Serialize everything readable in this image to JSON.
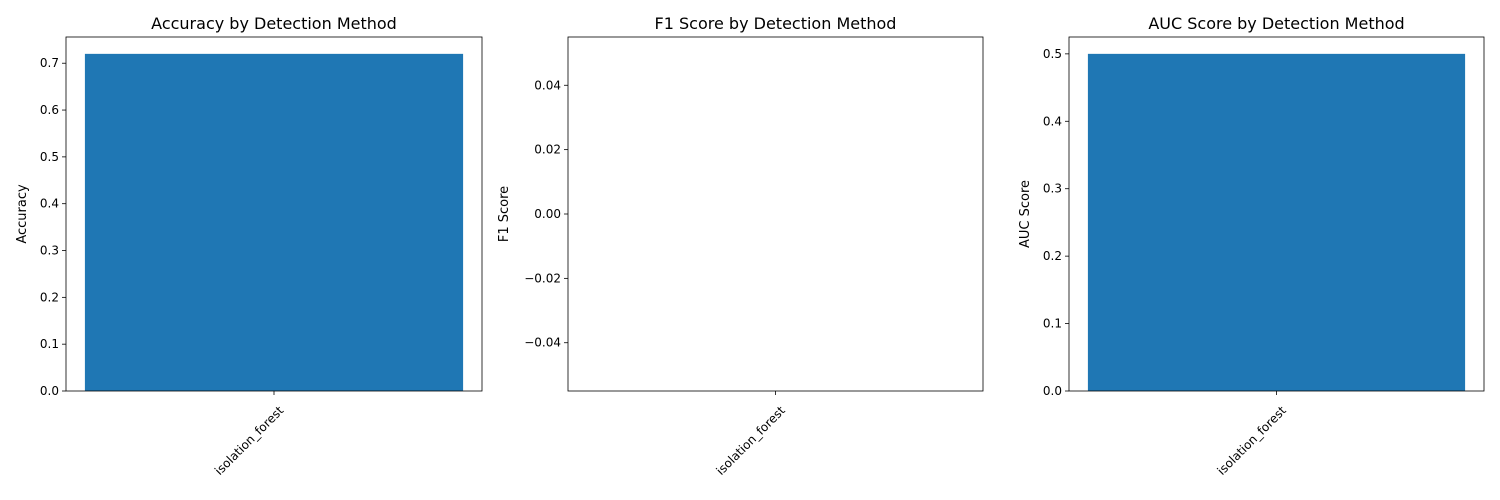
{
  "chart_data": [
    {
      "type": "bar",
      "title": "Accuracy by Detection Method",
      "xlabel": "",
      "ylabel": "Accuracy",
      "categories": [
        "isolation_forest"
      ],
      "values": [
        0.72
      ],
      "ylim": [
        0,
        0.756
      ],
      "yticks": [
        0.0,
        0.1,
        0.2,
        0.3,
        0.4,
        0.5,
        0.6,
        0.7
      ],
      "ytick_labels": [
        "0.0",
        "0.1",
        "0.2",
        "0.3",
        "0.4",
        "0.5",
        "0.6",
        "0.7"
      ],
      "grid": false,
      "bar_color": "#1f77b4"
    },
    {
      "type": "bar",
      "title": "F1 Score by Detection Method",
      "xlabel": "",
      "ylabel": "F1 Score",
      "categories": [
        "isolation_forest"
      ],
      "values": [
        0.0
      ],
      "ylim": [
        -0.055,
        0.055
      ],
      "yticks": [
        -0.04,
        -0.02,
        0.0,
        0.02,
        0.04
      ],
      "ytick_labels": [
        "−0.04",
        "−0.02",
        "0.00",
        "0.02",
        "0.04"
      ],
      "grid": false,
      "bar_color": "#1f77b4"
    },
    {
      "type": "bar",
      "title": "AUC Score by Detection Method",
      "xlabel": "",
      "ylabel": "AUC Score",
      "categories": [
        "isolation_forest"
      ],
      "values": [
        0.5
      ],
      "ylim": [
        0,
        0.525
      ],
      "yticks": [
        0.0,
        0.1,
        0.2,
        0.3,
        0.4,
        0.5
      ],
      "ytick_labels": [
        "0.0",
        "0.1",
        "0.2",
        "0.3",
        "0.4",
        "0.5"
      ],
      "grid": false,
      "bar_color": "#1f77b4"
    }
  ]
}
